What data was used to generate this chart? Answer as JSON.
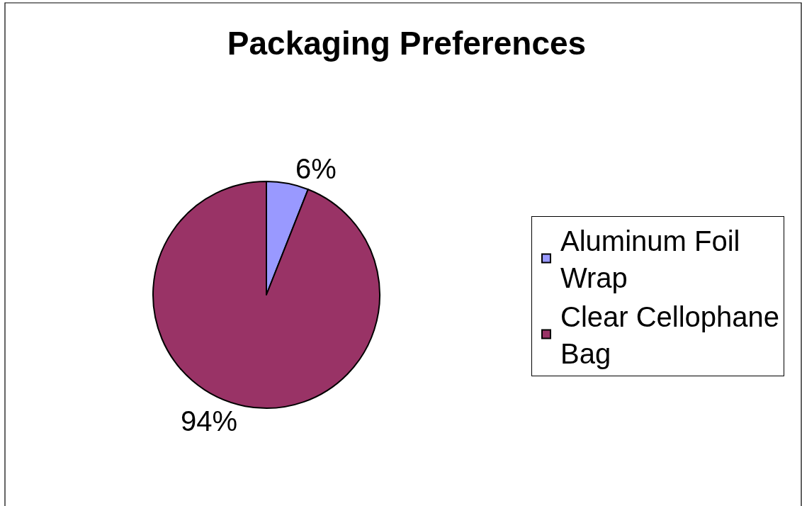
{
  "chart_data": {
    "type": "pie",
    "title": "Packaging Preferences",
    "categories": [
      "Aluminum Foil Wrap",
      "Clear Cellophane Bag"
    ],
    "values": [
      6,
      94
    ],
    "colors": [
      "#9999ff",
      "#993366"
    ],
    "value_labels": [
      "6%",
      "94%"
    ],
    "legend": "right"
  }
}
